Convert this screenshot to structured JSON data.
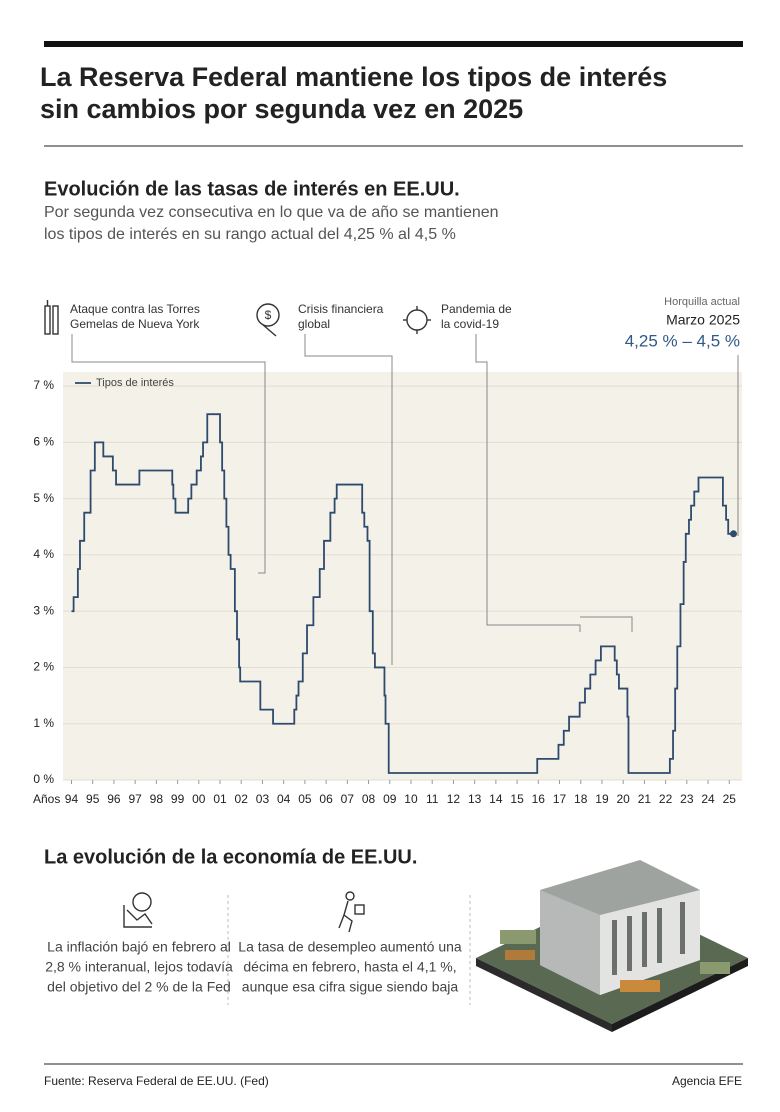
{
  "header": {
    "title": [
      "La Reserva Federal mantiene los tipos de interés",
      "sin cambios por segunda vez en 2025"
    ]
  },
  "chart_data": {
    "type": "line",
    "title": "Evolución de las tasas de interés en EE.UU.",
    "subtitle": [
      "Por segunda vez consecutiva en lo que va de año se mantienen",
      "los tipos de interés en su rango actual del 4,25 % al 4,5 %"
    ],
    "x_label": "Años",
    "annotations": [
      {
        "lines": [
          "Ataque contra las Torres",
          "Gemelas de Nueva York"
        ]
      },
      {
        "lines": [
          "Crisis financiera",
          "global"
        ]
      },
      {
        "lines": [
          "Pandemia de",
          "la covid-19"
        ]
      }
    ],
    "current": {
      "label": "Horquilla actual",
      "date": "Marzo 2025",
      "range": "4,25 % – 4,5 %"
    },
    "interpolation": "step",
    "grid": true,
    "legend": "top-left",
    "x": [
      1994.0,
      1994.1,
      1994.3,
      1994.4,
      1994.6,
      1994.9,
      1995.1,
      1995.5,
      1995.95,
      1996.1,
      1997.2,
      1998.75,
      1998.8,
      1998.9,
      1999.5,
      1999.65,
      1999.9,
      2000.1,
      2000.2,
      2000.4,
      2001.0,
      2001.1,
      2001.2,
      2001.3,
      2001.4,
      2001.5,
      2001.7,
      2001.8,
      2001.9,
      2001.95,
      2002.9,
      2003.5,
      2004.5,
      2004.6,
      2004.7,
      2004.9,
      2005.1,
      2005.4,
      2005.7,
      2005.9,
      2006.2,
      2006.4,
      2006.5,
      2007.7,
      2007.8,
      2007.95,
      2008.05,
      2008.2,
      2008.3,
      2008.75,
      2008.8,
      2008.95,
      2015.95,
      2016.95,
      2017.2,
      2017.45,
      2017.95,
      2018.2,
      2018.45,
      2018.7,
      2018.95,
      2019.6,
      2019.7,
      2019.8,
      2020.2,
      2020.25,
      2022.2,
      2022.35,
      2022.45,
      2022.55,
      2022.7,
      2022.85,
      2022.95,
      2023.1,
      2023.2,
      2023.35,
      2023.55,
      2024.7,
      2024.85,
      2024.95,
      2025.2
    ],
    "series": [
      {
        "name": "Tipos de interés",
        "color": "#2e4b6d",
        "values": [
          3.0,
          3.25,
          3.75,
          4.25,
          4.75,
          5.5,
          6.0,
          5.75,
          5.5,
          5.25,
          5.5,
          5.25,
          5.0,
          4.75,
          5.0,
          5.25,
          5.5,
          5.75,
          6.0,
          6.5,
          6.0,
          5.5,
          5.0,
          4.5,
          4.0,
          3.75,
          3.0,
          2.5,
          2.0,
          1.75,
          1.25,
          1.0,
          1.25,
          1.5,
          1.75,
          2.25,
          2.75,
          3.25,
          3.75,
          4.25,
          4.75,
          5.0,
          5.25,
          4.75,
          4.5,
          4.25,
          3.0,
          2.25,
          2.0,
          1.5,
          1.0,
          0.125,
          0.375,
          0.625,
          0.875,
          1.125,
          1.375,
          1.625,
          1.875,
          2.125,
          2.375,
          2.125,
          1.875,
          1.625,
          1.125,
          0.125,
          0.375,
          0.875,
          1.625,
          2.375,
          3.125,
          3.875,
          4.375,
          4.625,
          4.875,
          5.125,
          5.375,
          4.875,
          4.625,
          4.375,
          4.375
        ]
      }
    ],
    "xlim": [
      1993.6,
      2025.6
    ],
    "ylim": [
      0,
      7.25
    ],
    "xticks": [
      {
        "value": 1994,
        "label": "94"
      },
      {
        "value": 1995,
        "label": "95"
      },
      {
        "value": 1996,
        "label": "96"
      },
      {
        "value": 1997,
        "label": "97"
      },
      {
        "value": 1998,
        "label": "98"
      },
      {
        "value": 1999,
        "label": "99"
      },
      {
        "value": 2000,
        "label": "00"
      },
      {
        "value": 2001,
        "label": "01"
      },
      {
        "value": 2002,
        "label": "02"
      },
      {
        "value": 2003,
        "label": "03"
      },
      {
        "value": 2004,
        "label": "04"
      },
      {
        "value": 2005,
        "label": "05"
      },
      {
        "value": 2006,
        "label": "06"
      },
      {
        "value": 2007,
        "label": "07"
      },
      {
        "value": 2008,
        "label": "08"
      },
      {
        "value": 2009,
        "label": "09"
      },
      {
        "value": 2010,
        "label": "10"
      },
      {
        "value": 2011,
        "label": "11"
      },
      {
        "value": 2012,
        "label": "12"
      },
      {
        "value": 2013,
        "label": "13"
      },
      {
        "value": 2014,
        "label": "14"
      },
      {
        "value": 2015,
        "label": "15"
      },
      {
        "value": 2016,
        "label": "16"
      },
      {
        "value": 2017,
        "label": "17"
      },
      {
        "value": 2018,
        "label": "18"
      },
      {
        "value": 2019,
        "label": "19"
      },
      {
        "value": 2020,
        "label": "20"
      },
      {
        "value": 2021,
        "label": "21"
      },
      {
        "value": 2022,
        "label": "22"
      },
      {
        "value": 2023,
        "label": "23"
      },
      {
        "value": 2024,
        "label": "24"
      },
      {
        "value": 2025,
        "label": "25"
      }
    ],
    "yticks": [
      {
        "value": 0,
        "label": "0 %"
      },
      {
        "value": 1,
        "label": "1 %"
      },
      {
        "value": 2,
        "label": "2 %"
      },
      {
        "value": 3,
        "label": "3 %"
      },
      {
        "value": 4,
        "label": "4 %"
      },
      {
        "value": 5,
        "label": "5 %"
      },
      {
        "value": 6,
        "label": "6 %"
      },
      {
        "value": 7,
        "label": "7 %"
      }
    ]
  },
  "economy": {
    "title": "La evolución de la economía de EE.UU.",
    "items": [
      {
        "text": [
          "La inflación bajó en febrero al",
          "2,8 % interanual, lejos todavía",
          "del objetivo del 2 % de la Fed"
        ]
      },
      {
        "text": [
          "La tasa de desempleo aumentó una",
          "décima en febrero, hasta el 4,1 %,",
          "aunque esa cifra sigue siendo baja"
        ]
      }
    ]
  },
  "footer": {
    "source": "Fuente: Reserva Federal de EE.UU. (Fed)",
    "agency": "Agencia EFE"
  }
}
